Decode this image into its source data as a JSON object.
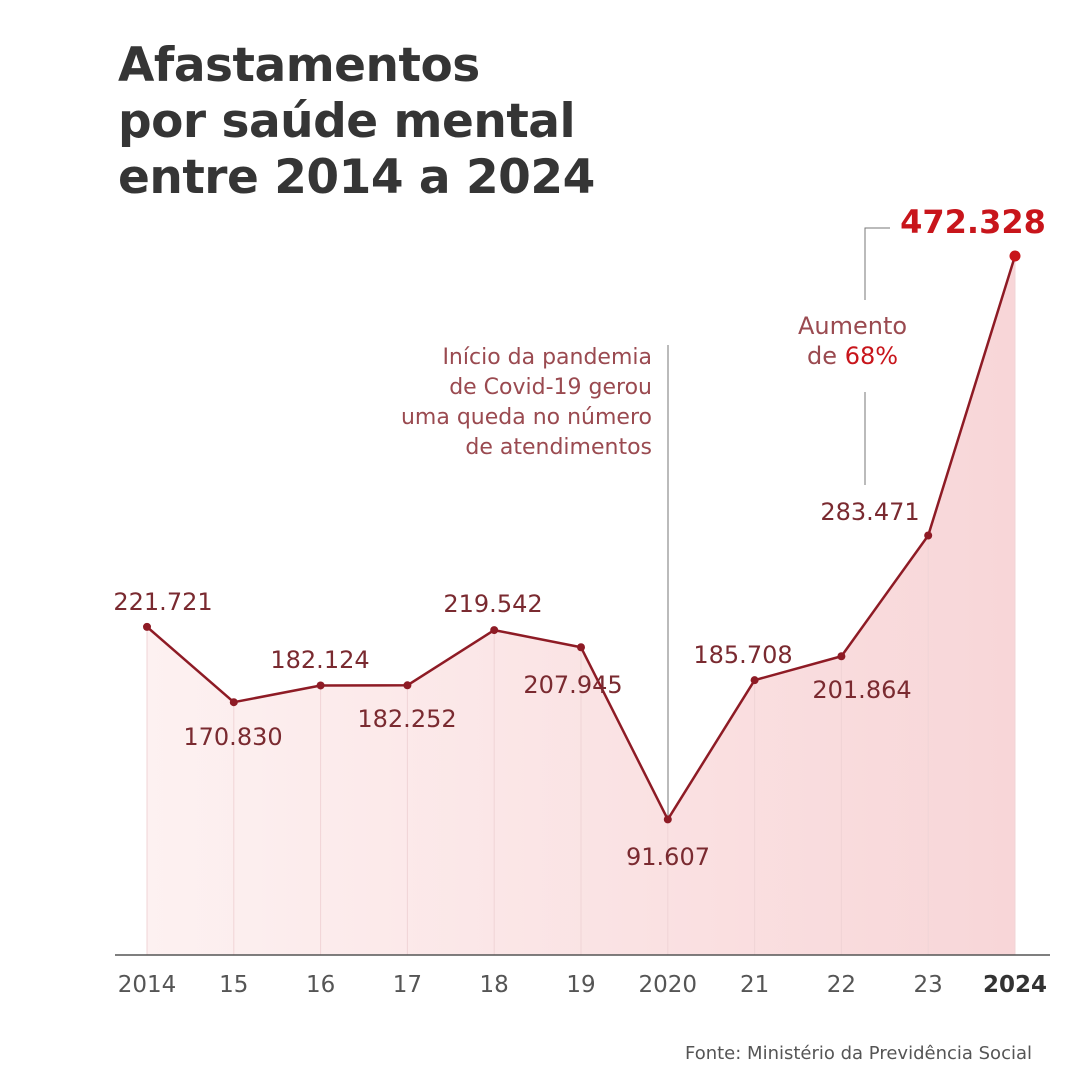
{
  "chart_data": {
    "type": "area",
    "title": [
      "Afastamentos",
      "por saúde mental",
      "entre 2014 a 2024"
    ],
    "categories": [
      "2014",
      "15",
      "16",
      "17",
      "18",
      "19",
      "2020",
      "21",
      "22",
      "23",
      "2024"
    ],
    "values": [
      221721,
      170830,
      182124,
      182252,
      219542,
      207945,
      91607,
      185708,
      201864,
      283471,
      472328
    ],
    "value_labels": [
      "221.721",
      "170.830",
      "182.124",
      "182.252",
      "219.542",
      "207.945",
      "91.607",
      "185.708",
      "201.864",
      "283.471",
      "472.328"
    ],
    "ylim": [
      0,
      475000
    ],
    "grid": false,
    "annotations": {
      "covid": [
        "Início da pandemia",
        "de Covid-19 gerou",
        "uma queda no número",
        "de atendimentos"
      ],
      "increase_line1": "Aumento",
      "increase_line2_prefix": "de ",
      "increase_pct": "68%"
    },
    "source": "Fonte: Ministério da Previdência Social",
    "colors": {
      "line": "#8e1b25",
      "label": "#7a2a30",
      "highlight": "#c8151b",
      "title": "#353535",
      "fill": "#f9dede"
    }
  }
}
